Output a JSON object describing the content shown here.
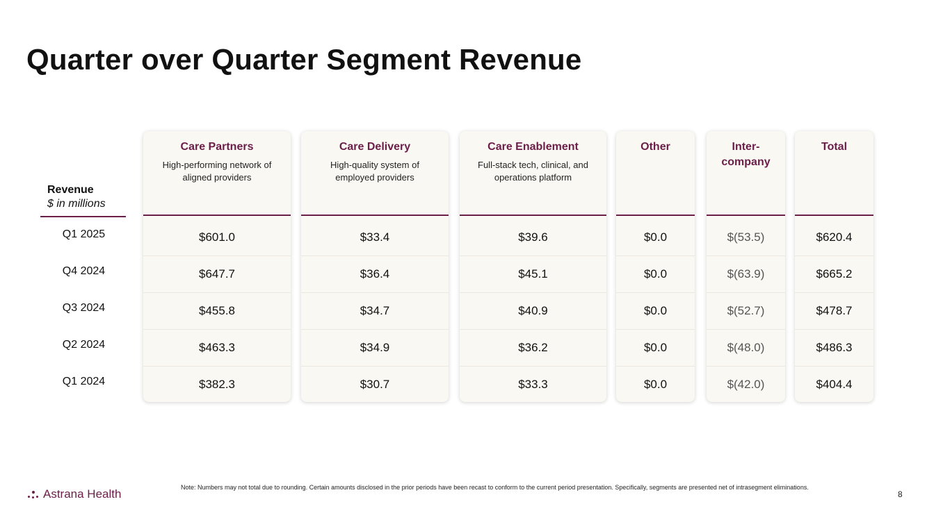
{
  "title": "Quarter over Quarter Segment Revenue",
  "revenue_label": "Revenue",
  "unit_label": "$ in millions",
  "row_labels": [
    "Q1 2025",
    "Q4 2024",
    "Q3 2024",
    "Q2  2024",
    "Q1 2024"
  ],
  "columns": [
    {
      "name": "Care Partners",
      "desc": "High-performing network of aligned providers",
      "values": [
        "$601.0",
        "$647.7",
        "$455.8",
        "$463.3",
        "$382.3"
      ]
    },
    {
      "name": "Care Delivery",
      "desc": "High-quality system of employed providers",
      "values": [
        "$33.4",
        "$36.4",
        "$34.7",
        "$34.9",
        "$30.7"
      ]
    },
    {
      "name": "Care Enablement",
      "desc": "Full-stack tech, clinical, and operations platform",
      "values": [
        "$39.6",
        "$45.1",
        "$40.9",
        "$36.2",
        "$33.3"
      ]
    },
    {
      "name": "Other",
      "desc": "",
      "values": [
        "$0.0",
        "$0.0",
        "$0.0",
        "$0.0",
        "$0.0"
      ]
    },
    {
      "name": "Inter-\ncompany",
      "desc": "",
      "values": [
        "$(53.5)",
        "$(63.9)",
        "$(52.7)",
        "$(48.0)",
        "$(42.0)"
      ]
    },
    {
      "name": "Total",
      "desc": "",
      "values": [
        "$620.4",
        "$665.2",
        "$478.7",
        "$486.3",
        "$404.4"
      ]
    }
  ],
  "note": "Note: Numbers may not total due to rounding. Certain amounts disclosed in the prior periods have been recast to conform to the current period presentation. Specifically, segments are presented net of intrasegment eliminations.",
  "logo_text": "Astrana Health",
  "logo_icon": "sparkle-dots-icon",
  "page_number": "8",
  "accent_color": "#6b1e48"
}
